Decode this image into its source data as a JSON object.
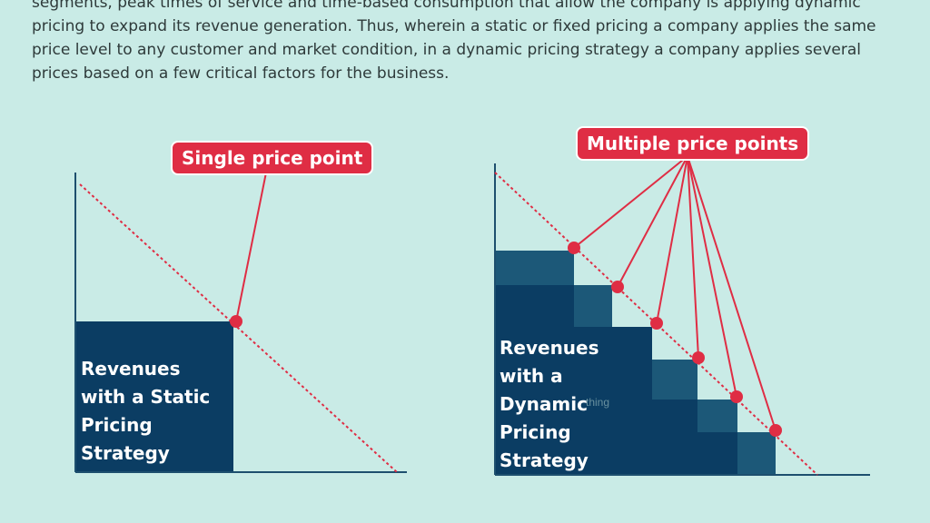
{
  "paragraph": {
    "lines": [
      "segments, peak times of service and time-based consumption that allow the company is applying dynamic",
      "pricing to expand its revenue generation. Thus, wherein a static or fixed pricing a company applies the same",
      "price level to any customer and market condition, in a dynamic pricing strategy a company applies several",
      "prices based on a few critical factors for the business."
    ]
  },
  "static_diagram": {
    "callout": "Single price point",
    "label_lines": [
      "Revenues",
      "with a Static",
      "Pricing",
      "Strategy"
    ]
  },
  "dynamic_diagram": {
    "callout": "Multiple price points",
    "label_lines": [
      "Revenues",
      "with a",
      "Dynamic",
      "Pricing",
      "Strategy"
    ],
    "watermark_fragment": "thing"
  },
  "colors": {
    "background": "#c9ebe6",
    "callout": "#df2d44",
    "block_dark": "#0b3d63",
    "block_mid": "#1c5878",
    "axis": "#1d4f6e",
    "demand_line": "#df2d44"
  }
}
